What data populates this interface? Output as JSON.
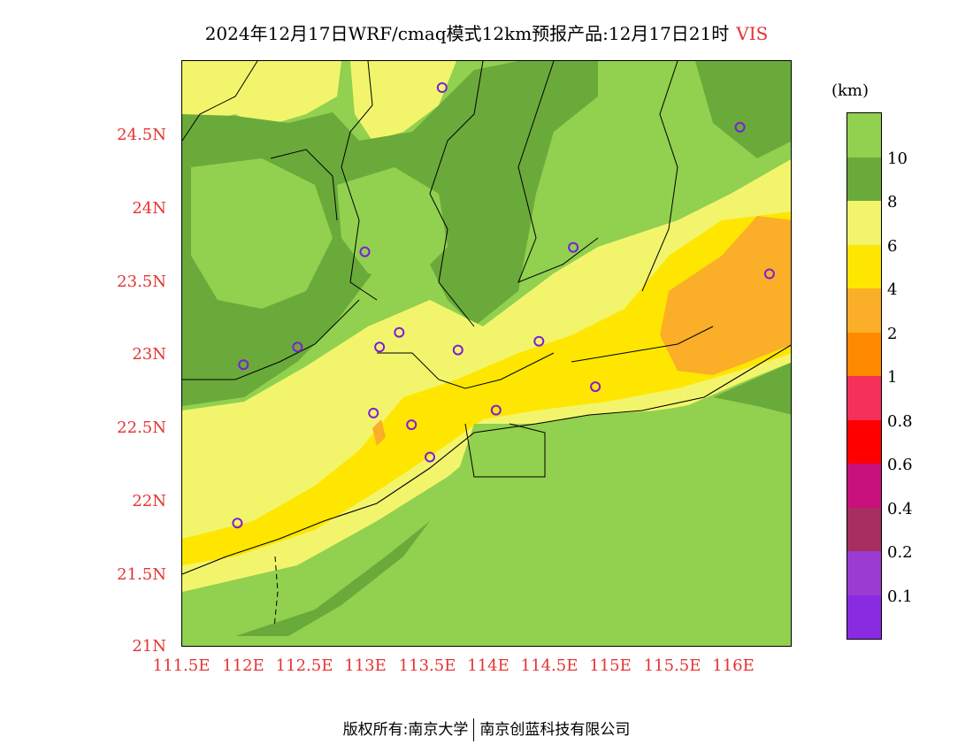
{
  "title": {
    "main": "2024年12月17日WRF/cmaq模式12km预报产品:12月17日21时",
    "variable": "VIS"
  },
  "axes": {
    "lat_labels": [
      "24.5N",
      "24N",
      "23.5N",
      "23N",
      "22.5N",
      "22N",
      "21.5N",
      "21N"
    ],
    "lon_labels": [
      "111.5E",
      "112E",
      "112.5E",
      "113E",
      "113.5E",
      "114E",
      "114.5E",
      "115E",
      "115.5E",
      "116E"
    ]
  },
  "colorbar": {
    "unit": "(km)",
    "labels": [
      "10",
      "8",
      "6",
      "4",
      "2",
      "1",
      "0.8",
      "0.6",
      "0.4",
      "0.2",
      "0.1"
    ],
    "colors": [
      "#92d050",
      "#6aaa3a",
      "#f2f56c",
      "#ffe600",
      "#fbae28",
      "#ff8a00",
      "#f5315b",
      "#fe0000",
      "#c9117c",
      "#a72e5e",
      "#9b3bd1",
      "#8a2be2"
    ]
  },
  "colors": {
    "green10": "#92d050",
    "green8": "#6aaa3a",
    "yellow6": "#f2f56c",
    "yellow4": "#ffe600",
    "orange2": "#fbae28",
    "station": "#7b1fd6",
    "axis_label": "#e63232"
  },
  "stations": [
    {
      "lon": 113.62,
      "lat": 24.82
    },
    {
      "lon": 116.05,
      "lat": 24.55
    },
    {
      "lon": 112.99,
      "lat": 23.7
    },
    {
      "lon": 114.69,
      "lat": 23.73
    },
    {
      "lon": 116.29,
      "lat": 23.55
    },
    {
      "lon": 113.27,
      "lat": 23.15
    },
    {
      "lon": 112.44,
      "lat": 23.05
    },
    {
      "lon": 113.11,
      "lat": 23.05
    },
    {
      "lon": 113.75,
      "lat": 23.03
    },
    {
      "lon": 114.41,
      "lat": 23.09
    },
    {
      "lon": 112.0,
      "lat": 22.93
    },
    {
      "lon": 113.06,
      "lat": 22.6
    },
    {
      "lon": 114.06,
      "lat": 22.62
    },
    {
      "lon": 113.37,
      "lat": 22.52
    },
    {
      "lon": 113.52,
      "lat": 22.3
    },
    {
      "lon": 114.87,
      "lat": 22.78
    },
    {
      "lon": 111.95,
      "lat": 21.85
    }
  ],
  "footer": {
    "left": "版权所有:南京大学",
    "right": "南京创蓝科技有限公司"
  }
}
